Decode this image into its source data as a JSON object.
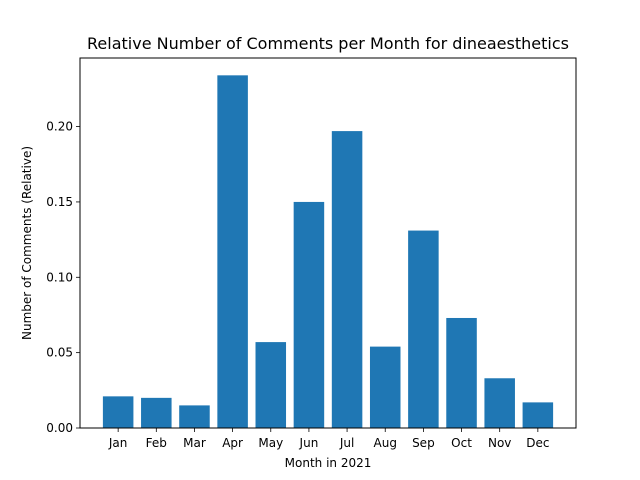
{
  "chart_data": {
    "type": "bar",
    "title": "Relative Number of Comments per Month for dineaesthetics",
    "xlabel": "Month in 2021",
    "ylabel": "Number of Comments (Relative)",
    "categories": [
      "Jan",
      "Feb",
      "Mar",
      "Apr",
      "May",
      "Jun",
      "Jul",
      "Aug",
      "Sep",
      "Oct",
      "Nov",
      "Dec"
    ],
    "values": [
      0.021,
      0.02,
      0.015,
      0.234,
      0.057,
      0.15,
      0.197,
      0.054,
      0.131,
      0.073,
      0.033,
      0.017
    ],
    "ylim": [
      0,
      0.2455
    ],
    "yticks": [
      0.0,
      0.05,
      0.1,
      0.15,
      0.2
    ],
    "ytick_labels": [
      "0.00",
      "0.05",
      "0.10",
      "0.15",
      "0.20"
    ],
    "bar_color": "#1f77b4",
    "grid": false,
    "legend": false
  }
}
